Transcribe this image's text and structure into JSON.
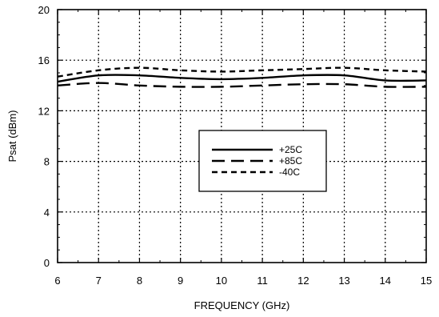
{
  "chart_data": {
    "type": "line",
    "title": "",
    "xlabel": "FREQUENCY (GHz)",
    "ylabel": "Psat (dBm)",
    "xlim": [
      6,
      15
    ],
    "ylim": [
      0,
      20
    ],
    "x_ticks": [
      "6",
      "7",
      "8",
      "9",
      "10",
      "11",
      "12",
      "13",
      "14",
      "15"
    ],
    "y_ticks": [
      "0",
      "4",
      "8",
      "12",
      "16",
      "20"
    ],
    "grid": true,
    "legend_position": "center-right",
    "x": [
      6,
      7,
      8,
      9,
      10,
      11,
      12,
      13,
      14,
      15
    ],
    "series": [
      {
        "name": "+25C",
        "style": "solid",
        "values": [
          14.3,
          14.8,
          14.8,
          14.6,
          14.5,
          14.6,
          14.8,
          14.8,
          14.4,
          14.4
        ]
      },
      {
        "name": "+85C",
        "style": "long-dash",
        "values": [
          14.0,
          14.2,
          14.0,
          13.9,
          13.9,
          14.0,
          14.1,
          14.1,
          13.9,
          13.9
        ]
      },
      {
        "name": "-40C",
        "style": "short-dash",
        "values": [
          14.7,
          15.2,
          15.4,
          15.2,
          15.1,
          15.2,
          15.3,
          15.4,
          15.2,
          15.1
        ]
      }
    ]
  }
}
